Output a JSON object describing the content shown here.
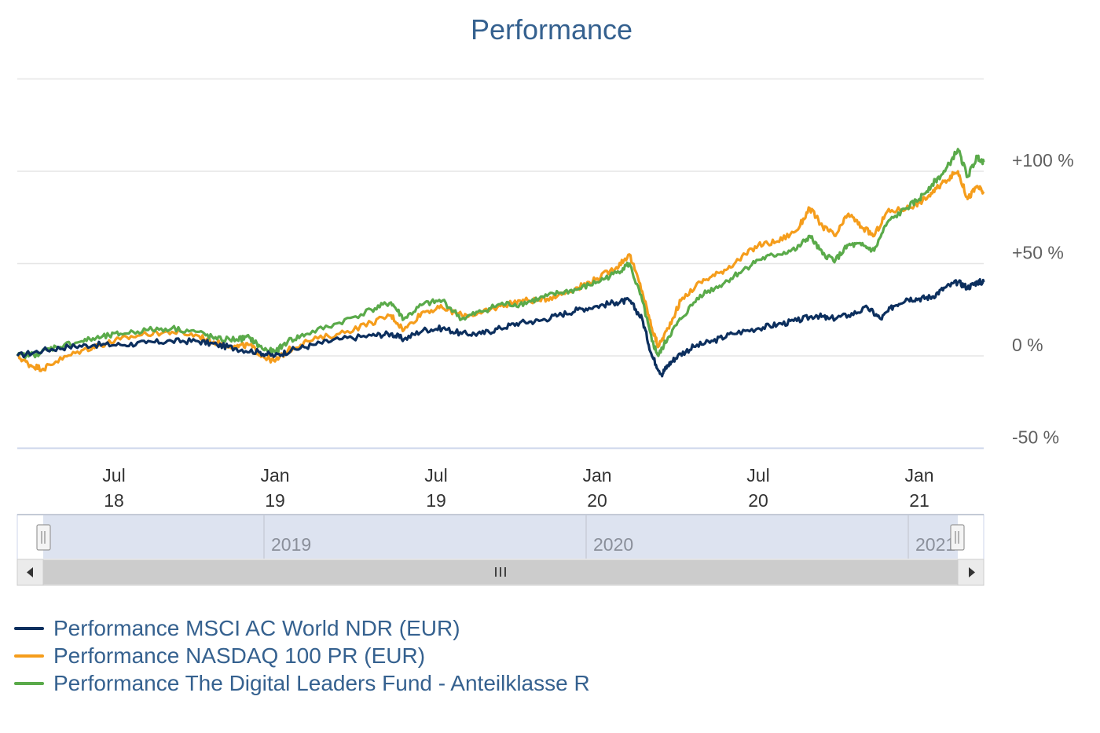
{
  "chart_data": {
    "type": "line",
    "title": "Performance",
    "y_axis": {
      "ticks": [
        {
          "value": -50,
          "label": "-50 %"
        },
        {
          "value": 0,
          "label": "0 %"
        },
        {
          "value": 50,
          "label": "+50 %"
        },
        {
          "value": 100,
          "label": "+100 %"
        }
      ],
      "range": [
        -50,
        150
      ],
      "unit": "%"
    },
    "x_axis": {
      "ticks": [
        {
          "line1": "Jul",
          "line2": "18",
          "date": 2018.5
        },
        {
          "line1": "Jan",
          "line2": "19",
          "date": 2019.0
        },
        {
          "line1": "Jul",
          "line2": "19",
          "date": 2019.5
        },
        {
          "line1": "Jan",
          "line2": "20",
          "date": 2020.0
        },
        {
          "line1": "Jul",
          "line2": "20",
          "date": 2020.5
        },
        {
          "line1": "Jan",
          "line2": "21",
          "date": 2021.0
        }
      ],
      "range": [
        2018.2,
        2021.2
      ]
    },
    "navigator": {
      "labels": [
        {
          "label": "2019",
          "date": 2019.0
        },
        {
          "label": "2020",
          "date": 2020.0
        },
        {
          "label": "2021",
          "date": 2021.0
        }
      ]
    },
    "series": [
      {
        "name": "Performance MSCI AC World NDR (EUR)",
        "color": "#0c2f5e",
        "points": [
          [
            2018.2,
            0
          ],
          [
            2018.28,
            3
          ],
          [
            2018.36,
            5
          ],
          [
            2018.44,
            6
          ],
          [
            2018.52,
            6
          ],
          [
            2018.6,
            7
          ],
          [
            2018.68,
            8
          ],
          [
            2018.76,
            8
          ],
          [
            2018.82,
            6
          ],
          [
            2018.88,
            4
          ],
          [
            2018.95,
            2
          ],
          [
            2019.0,
            0
          ],
          [
            2019.05,
            3
          ],
          [
            2019.12,
            6
          ],
          [
            2019.2,
            9
          ],
          [
            2019.3,
            11
          ],
          [
            2019.36,
            12
          ],
          [
            2019.4,
            9
          ],
          [
            2019.46,
            14
          ],
          [
            2019.52,
            15
          ],
          [
            2019.58,
            12
          ],
          [
            2019.64,
            12
          ],
          [
            2019.7,
            15
          ],
          [
            2019.76,
            18
          ],
          [
            2019.82,
            19
          ],
          [
            2019.88,
            22
          ],
          [
            2019.94,
            25
          ],
          [
            2020.0,
            27
          ],
          [
            2020.06,
            29
          ],
          [
            2020.1,
            30
          ],
          [
            2020.14,
            20
          ],
          [
            2020.17,
            0
          ],
          [
            2020.2,
            -10
          ],
          [
            2020.22,
            -5
          ],
          [
            2020.25,
            0
          ],
          [
            2020.3,
            5
          ],
          [
            2020.36,
            8
          ],
          [
            2020.42,
            12
          ],
          [
            2020.5,
            15
          ],
          [
            2020.56,
            17
          ],
          [
            2020.62,
            19
          ],
          [
            2020.68,
            22
          ],
          [
            2020.72,
            20
          ],
          [
            2020.78,
            22
          ],
          [
            2020.84,
            26
          ],
          [
            2020.88,
            20
          ],
          [
            2020.92,
            27
          ],
          [
            2020.96,
            31
          ],
          [
            2021.0,
            31
          ],
          [
            2021.04,
            32
          ],
          [
            2021.08,
            37
          ],
          [
            2021.12,
            40
          ],
          [
            2021.15,
            37
          ],
          [
            2021.18,
            40
          ],
          [
            2021.2,
            40
          ]
        ]
      },
      {
        "name": "Performance NASDAQ 100 PR (EUR)",
        "color": "#f59d1c",
        "points": [
          [
            2018.2,
            0
          ],
          [
            2018.24,
            -5
          ],
          [
            2018.28,
            -7
          ],
          [
            2018.32,
            -3
          ],
          [
            2018.4,
            3
          ],
          [
            2018.46,
            6
          ],
          [
            2018.52,
            9
          ],
          [
            2018.6,
            12
          ],
          [
            2018.68,
            13
          ],
          [
            2018.76,
            11
          ],
          [
            2018.82,
            7
          ],
          [
            2018.88,
            5
          ],
          [
            2018.92,
            6
          ],
          [
            2018.96,
            0
          ],
          [
            2019.0,
            -3
          ],
          [
            2019.04,
            3
          ],
          [
            2019.1,
            8
          ],
          [
            2019.2,
            12
          ],
          [
            2019.3,
            18
          ],
          [
            2019.36,
            22
          ],
          [
            2019.4,
            14
          ],
          [
            2019.46,
            24
          ],
          [
            2019.52,
            26
          ],
          [
            2019.58,
            22
          ],
          [
            2019.64,
            23
          ],
          [
            2019.7,
            27
          ],
          [
            2019.76,
            30
          ],
          [
            2019.82,
            30
          ],
          [
            2019.88,
            33
          ],
          [
            2019.94,
            37
          ],
          [
            2020.0,
            42
          ],
          [
            2020.06,
            48
          ],
          [
            2020.1,
            55
          ],
          [
            2020.14,
            35
          ],
          [
            2020.17,
            15
          ],
          [
            2020.19,
            5
          ],
          [
            2020.22,
            15
          ],
          [
            2020.26,
            30
          ],
          [
            2020.32,
            40
          ],
          [
            2020.38,
            45
          ],
          [
            2020.44,
            52
          ],
          [
            2020.5,
            60
          ],
          [
            2020.56,
            62
          ],
          [
            2020.62,
            68
          ],
          [
            2020.66,
            80
          ],
          [
            2020.7,
            70
          ],
          [
            2020.74,
            65
          ],
          [
            2020.78,
            77
          ],
          [
            2020.82,
            70
          ],
          [
            2020.86,
            65
          ],
          [
            2020.9,
            78
          ],
          [
            2020.96,
            80
          ],
          [
            2021.0,
            83
          ],
          [
            2021.04,
            88
          ],
          [
            2021.08,
            95
          ],
          [
            2021.12,
            100
          ],
          [
            2021.15,
            85
          ],
          [
            2021.18,
            92
          ],
          [
            2021.2,
            88
          ]
        ]
      },
      {
        "name": "Performance The Digital Leaders Fund - Anteilklasse R",
        "color": "#5aaa4a",
        "points": [
          [
            2018.2,
            0
          ],
          [
            2018.26,
            1
          ],
          [
            2018.32,
            5
          ],
          [
            2018.4,
            8
          ],
          [
            2018.46,
            10
          ],
          [
            2018.52,
            12
          ],
          [
            2018.6,
            14
          ],
          [
            2018.68,
            15
          ],
          [
            2018.76,
            13
          ],
          [
            2018.82,
            9
          ],
          [
            2018.88,
            9
          ],
          [
            2018.92,
            10
          ],
          [
            2018.96,
            4
          ],
          [
            2019.0,
            2
          ],
          [
            2019.04,
            8
          ],
          [
            2019.1,
            12
          ],
          [
            2019.2,
            18
          ],
          [
            2019.3,
            25
          ],
          [
            2019.36,
            29
          ],
          [
            2019.4,
            20
          ],
          [
            2019.46,
            28
          ],
          [
            2019.52,
            30
          ],
          [
            2019.58,
            20
          ],
          [
            2019.64,
            24
          ],
          [
            2019.7,
            28
          ],
          [
            2019.76,
            28
          ],
          [
            2019.82,
            31
          ],
          [
            2019.88,
            34
          ],
          [
            2019.94,
            36
          ],
          [
            2020.0,
            40
          ],
          [
            2020.06,
            45
          ],
          [
            2020.1,
            50
          ],
          [
            2020.14,
            30
          ],
          [
            2020.17,
            8
          ],
          [
            2020.19,
            0
          ],
          [
            2020.22,
            10
          ],
          [
            2020.26,
            20
          ],
          [
            2020.32,
            33
          ],
          [
            2020.38,
            38
          ],
          [
            2020.44,
            45
          ],
          [
            2020.5,
            52
          ],
          [
            2020.56,
            55
          ],
          [
            2020.62,
            58
          ],
          [
            2020.66,
            65
          ],
          [
            2020.7,
            55
          ],
          [
            2020.74,
            52
          ],
          [
            2020.78,
            60
          ],
          [
            2020.82,
            60
          ],
          [
            2020.86,
            57
          ],
          [
            2020.9,
            72
          ],
          [
            2020.96,
            80
          ],
          [
            2021.0,
            85
          ],
          [
            2021.04,
            93
          ],
          [
            2021.08,
            100
          ],
          [
            2021.12,
            112
          ],
          [
            2021.15,
            97
          ],
          [
            2021.18,
            108
          ],
          [
            2021.2,
            105
          ]
        ]
      }
    ]
  }
}
